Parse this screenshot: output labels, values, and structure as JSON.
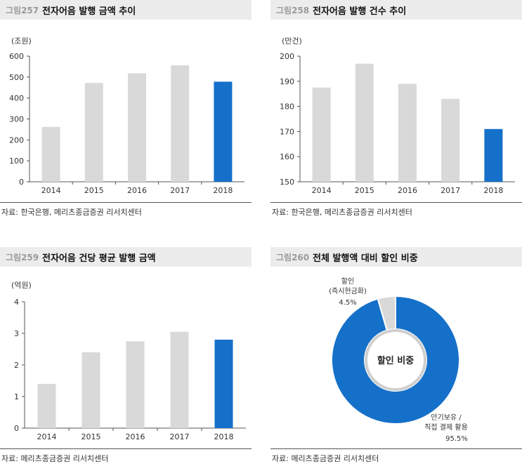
{
  "panels": [
    {
      "label": "그림257",
      "title": "전자어음 발행 금액 추이",
      "unit": "(조원)",
      "source": "자료: 한국은행, 메리츠종금증권 리서치센터"
    },
    {
      "label": "그림258",
      "title": "전자어음 발행 건수 추이",
      "unit": "(만건)",
      "source": "자료: 한국은행, 메리츠종금증권 리서치센터"
    },
    {
      "label": "그림259",
      "title": "전자어음 건당 평균 발행 금액",
      "unit": "(억원)",
      "source": "자료: 메리츠종금증권 리서치센터"
    },
    {
      "label": "그림260",
      "title": "전체 발행액 대비 할인 비중",
      "unit": "",
      "source": "자료: 메리츠종금증권 리서치센터"
    }
  ],
  "colors": {
    "bar": "#d9d9d9",
    "highlight": "#1570c9",
    "axis": "#555555"
  },
  "chart_data": [
    {
      "type": "bar",
      "title": "전자어음 발행 금액 추이",
      "unit": "(조원)",
      "categories": [
        "2014",
        "2015",
        "2016",
        "2017",
        "2018"
      ],
      "values": [
        262,
        472,
        518,
        556,
        478
      ],
      "highlight_index": 4,
      "ylim": [
        0,
        600
      ],
      "yticks": [
        0,
        100,
        200,
        300,
        400,
        500,
        600
      ]
    },
    {
      "type": "bar",
      "title": "전자어음 발행 건수 추이",
      "unit": "(만건)",
      "categories": [
        "2014",
        "2015",
        "2016",
        "2017",
        "2018"
      ],
      "values": [
        187.5,
        197,
        189,
        183,
        171
      ],
      "highlight_index": 4,
      "ylim": [
        150,
        200
      ],
      "yticks": [
        150,
        160,
        170,
        180,
        190,
        200
      ]
    },
    {
      "type": "bar",
      "title": "전자어음 건당 평균 발행 금액",
      "unit": "(억원)",
      "categories": [
        "2014",
        "2015",
        "2016",
        "2017",
        "2018"
      ],
      "values": [
        1.4,
        2.4,
        2.75,
        3.05,
        2.8
      ],
      "highlight_index": 4,
      "ylim": [
        0,
        4
      ],
      "yticks": [
        0,
        1,
        2,
        3,
        4
      ]
    },
    {
      "type": "pie",
      "title": "전체 발행액 대비 할인 비중",
      "center_label": "할인 비중",
      "slices": [
        {
          "label": "만기보유 / 직접 결제 활용",
          "lines": [
            "만기보유 /",
            "직접 결제 활용"
          ],
          "value": 95.5,
          "value_label": "95.5%",
          "color": "#1570c9"
        },
        {
          "label": "할인 (즉시현금화)",
          "lines": [
            "할인",
            "(즉시현금화)"
          ],
          "value": 4.5,
          "value_label": "4.5%",
          "color": "#d9d9d9"
        }
      ]
    }
  ]
}
